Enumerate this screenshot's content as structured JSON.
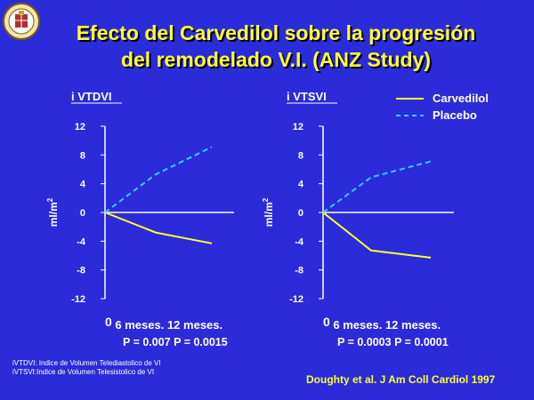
{
  "title": {
    "line1": "Efecto del Carvedilol sobre la progresión",
    "line2": "del remodelado V.I. (ANZ Study)"
  },
  "colors": {
    "background": "#2b2bd9",
    "title": "#ffff33",
    "carvedilol": "#ffff33",
    "placebo": "#33ccff"
  },
  "icons": {
    "logo": "university-seal-icon"
  },
  "legend": {
    "carvedilol": "Carvedilol",
    "placebo": "Placebo"
  },
  "chart_data": [
    {
      "type": "line",
      "title": "i VTDVI",
      "ylabel": "ml/m2",
      "ylim": [
        -12,
        12
      ],
      "yticks": [
        "12",
        "8",
        "4",
        "0",
        "-4",
        "-8",
        "-12"
      ],
      "x": [
        "0",
        "6 meses.",
        "12 meses."
      ],
      "series": [
        {
          "name": "Carvedilol",
          "values": [
            0,
            -2.8,
            -4.3
          ]
        },
        {
          "name": "Placebo",
          "values": [
            0,
            5.3,
            9.1
          ]
        }
      ],
      "pvalues": "P = 0.007 P = 0.0015"
    },
    {
      "type": "line",
      "title": "i VTSVI",
      "ylabel": "ml/m2",
      "ylim": [
        -12,
        12
      ],
      "yticks": [
        "12",
        "8",
        "4",
        "0",
        "-4",
        "-8",
        "-12"
      ],
      "x": [
        "0",
        "6 meses.",
        "12 meses."
      ],
      "series": [
        {
          "name": "Carvedilol",
          "values": [
            0,
            -5.3,
            -6.3
          ]
        },
        {
          "name": "Placebo",
          "values": [
            0,
            4.9,
            7.1
          ]
        }
      ],
      "pvalues": "P = 0.0003 P = 0.0001"
    }
  ],
  "footnotes": [
    "iVTDVI: Indice de Volumen Telediastolico de VI",
    "iVTSVI:Indice de Volumen Telesistolico de VI"
  ],
  "citation": "Doughty et al. J Am Coll Cardiol 1997"
}
